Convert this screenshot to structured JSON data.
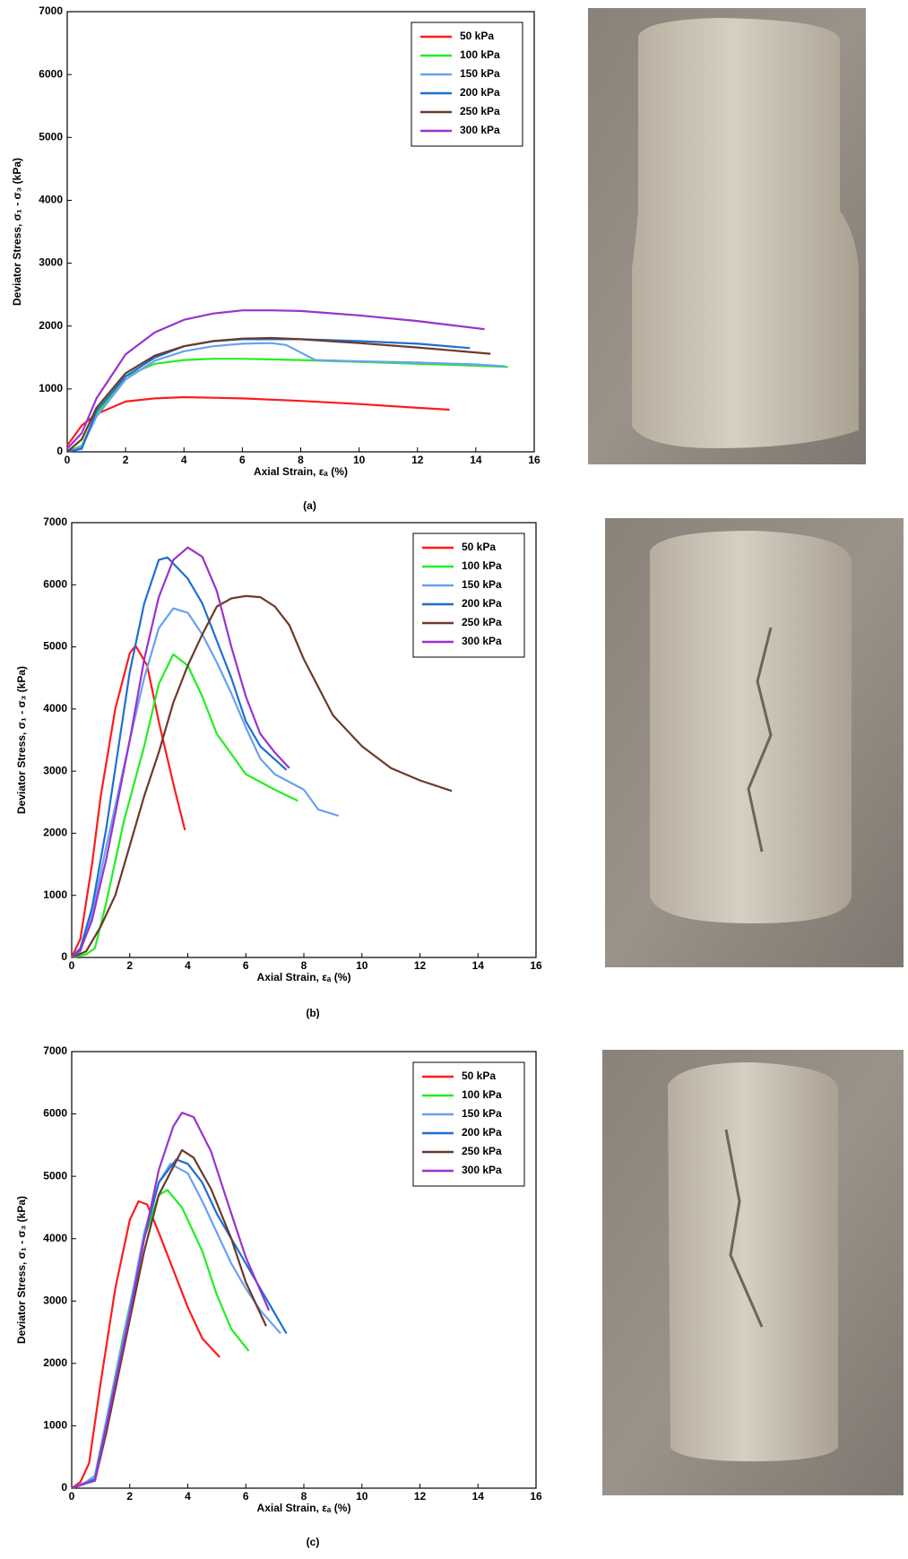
{
  "chart_data": [
    {
      "type": "line",
      "caption": "(a)",
      "xlabel": "Axial Strain, εₐ (%)",
      "ylabel": "Deviator Stress, σ₁ - σ₃ (kPa)",
      "xlim": [
        0,
        16
      ],
      "xticks": [
        0,
        2,
        4,
        6,
        8,
        10,
        12,
        14,
        16
      ],
      "ylim": [
        0,
        7000
      ],
      "yticks": [
        0,
        1000,
        2000,
        3000,
        4000,
        5000,
        6000,
        7000
      ],
      "legend": "top-right",
      "series": [
        {
          "name": "50 kPa",
          "color": "#ff1a1a",
          "x": [
            0,
            0.5,
            1,
            2,
            3,
            4,
            5,
            6,
            8,
            10,
            12,
            13.1
          ],
          "values": [
            100,
            420,
            600,
            800,
            850,
            870,
            860,
            850,
            810,
            760,
            700,
            670
          ]
        },
        {
          "name": "100 kPa",
          "color": "#22ee22",
          "x": [
            0,
            0.5,
            1,
            2,
            3,
            4,
            5,
            6,
            8,
            10,
            12,
            14,
            15.1
          ],
          "values": [
            0,
            100,
            600,
            1200,
            1400,
            1460,
            1480,
            1480,
            1460,
            1430,
            1400,
            1370,
            1350
          ]
        },
        {
          "name": "150 kPa",
          "color": "#6aa0f0",
          "x": [
            0,
            0.5,
            1,
            2,
            3,
            4,
            5,
            6,
            7,
            7.5,
            8.5,
            10,
            12,
            14,
            15
          ],
          "values": [
            0,
            80,
            560,
            1150,
            1450,
            1600,
            1680,
            1720,
            1730,
            1700,
            1460,
            1440,
            1420,
            1390,
            1360
          ]
        },
        {
          "name": "200 kPa",
          "color": "#1f6fcf",
          "x": [
            0,
            0.5,
            1,
            2,
            3,
            4,
            5,
            6,
            8,
            10,
            12,
            13.8
          ],
          "values": [
            0,
            50,
            650,
            1200,
            1500,
            1680,
            1760,
            1790,
            1790,
            1760,
            1720,
            1650
          ]
        },
        {
          "name": "250 kPa",
          "color": "#6b3a2a",
          "x": [
            0,
            0.5,
            1,
            2,
            3,
            4,
            5,
            6,
            7,
            8,
            10,
            12,
            14.5
          ],
          "values": [
            0,
            200,
            700,
            1250,
            1530,
            1680,
            1760,
            1800,
            1810,
            1790,
            1730,
            1660,
            1560
          ]
        },
        {
          "name": "300 kPa",
          "color": "#9933cc",
          "x": [
            0,
            0.5,
            1,
            2,
            3,
            4,
            5,
            6,
            7,
            8,
            10,
            12,
            14.3
          ],
          "values": [
            50,
            300,
            850,
            1550,
            1900,
            2100,
            2200,
            2250,
            2250,
            2240,
            2170,
            2080,
            1950
          ]
        }
      ]
    },
    {
      "type": "line",
      "caption": "(b)",
      "xlabel": "Axial Strain, εₐ (%)",
      "ylabel": "Deviator Stress, σ₁ - σ₃ (kPa)",
      "xlim": [
        0,
        16
      ],
      "xticks": [
        0,
        2,
        4,
        6,
        8,
        10,
        12,
        14,
        16
      ],
      "ylim": [
        0,
        7000
      ],
      "yticks": [
        0,
        1000,
        2000,
        3000,
        4000,
        5000,
        6000,
        7000
      ],
      "legend": "top-right",
      "series": [
        {
          "name": "50 kPa",
          "color": "#ff1a1a",
          "x": [
            0,
            0.3,
            0.7,
            1,
            1.5,
            2,
            2.2,
            2.6,
            3,
            3.5,
            3.9
          ],
          "values": [
            0,
            300,
            1500,
            2600,
            4000,
            4900,
            5020,
            4700,
            3800,
            2800,
            2050
          ]
        },
        {
          "name": "100 kPa",
          "color": "#22ee22",
          "x": [
            0,
            0.5,
            0.8,
            1.2,
            1.8,
            2.5,
            3,
            3.5,
            4,
            4.5,
            5,
            6,
            7,
            7.8
          ],
          "values": [
            0,
            50,
            150,
            900,
            2200,
            3400,
            4400,
            4880,
            4700,
            4200,
            3600,
            2950,
            2700,
            2520
          ]
        },
        {
          "name": "150 kPa",
          "color": "#6aa0f0",
          "x": [
            0,
            0.3,
            0.7,
            1.2,
            2,
            2.5,
            3,
            3.5,
            4,
            4.5,
            5,
            5.5,
            6,
            6.5,
            7,
            8,
            8.5,
            9.2
          ],
          "values": [
            0,
            100,
            700,
            1800,
            3500,
            4500,
            5300,
            5620,
            5550,
            5200,
            4750,
            4250,
            3700,
            3200,
            2950,
            2700,
            2380,
            2280
          ]
        },
        {
          "name": "200 kPa",
          "color": "#1f6fcf",
          "x": [
            0,
            0.3,
            0.7,
            1.2,
            2,
            2.5,
            3,
            3.3,
            4,
            4.5,
            5,
            5.5,
            6,
            6.5,
            7.4
          ],
          "values": [
            0,
            150,
            800,
            2100,
            4600,
            5700,
            6400,
            6440,
            6100,
            5700,
            5100,
            4500,
            3800,
            3400,
            3020
          ]
        },
        {
          "name": "250 kPa",
          "color": "#6b3a2a",
          "x": [
            0,
            0.5,
            1,
            1.5,
            2,
            2.5,
            3,
            3.5,
            4,
            4.5,
            5,
            5.5,
            6,
            6.5,
            7,
            7.5,
            8,
            9,
            10,
            11,
            11.5,
            12,
            13.1
          ],
          "values": [
            0,
            100,
            500,
            1000,
            1800,
            2600,
            3300,
            4100,
            4700,
            5200,
            5650,
            5780,
            5820,
            5800,
            5650,
            5350,
            4800,
            3900,
            3400,
            3050,
            2950,
            2850,
            2680
          ]
        },
        {
          "name": "300 kPa",
          "color": "#9933cc",
          "x": [
            0,
            0.3,
            0.7,
            1.2,
            2,
            2.5,
            3,
            3.5,
            4,
            4.5,
            5,
            5.5,
            6,
            6.5,
            7,
            7.5
          ],
          "values": [
            0,
            120,
            600,
            1600,
            3500,
            4800,
            5800,
            6400,
            6600,
            6450,
            5900,
            5000,
            4200,
            3600,
            3300,
            3050
          ]
        }
      ]
    },
    {
      "type": "line",
      "caption": "(c)",
      "xlabel": "Axial Strain, εₐ (%)",
      "ylabel": "Deviator Stress, σ₁ - σ₃ (kPa)",
      "xlim": [
        0,
        16
      ],
      "xticks": [
        0,
        2,
        4,
        6,
        8,
        10,
        12,
        14,
        16
      ],
      "ylim": [
        0,
        7000
      ],
      "yticks": [
        0,
        1000,
        2000,
        3000,
        4000,
        5000,
        6000,
        7000
      ],
      "legend": "top-right",
      "series": [
        {
          "name": "50 kPa",
          "color": "#ff1a1a",
          "x": [
            0,
            0.3,
            0.6,
            1,
            1.5,
            2,
            2.3,
            2.6,
            3,
            3.5,
            4,
            4.5,
            5.1
          ],
          "values": [
            0,
            100,
            400,
            1700,
            3200,
            4300,
            4600,
            4550,
            4100,
            3500,
            2900,
            2400,
            2100
          ]
        },
        {
          "name": "100 kPa",
          "color": "#22ee22",
          "x": [
            0,
            0.5,
            0.8,
            1.2,
            1.8,
            2.5,
            3,
            3.3,
            3.8,
            4.5,
            5,
            5.5,
            6.1
          ],
          "values": [
            0,
            100,
            200,
            1100,
            2500,
            4000,
            4700,
            4780,
            4500,
            3800,
            3100,
            2550,
            2200
          ]
        },
        {
          "name": "150 kPa",
          "color": "#6aa0f0",
          "x": [
            0,
            0.5,
            0.8,
            1.2,
            2,
            2.5,
            3,
            3.4,
            4,
            4.5,
            5,
            5.5,
            6,
            6.5,
            7.2
          ],
          "values": [
            0,
            100,
            200,
            1100,
            2900,
            4100,
            4900,
            5200,
            5050,
            4600,
            4100,
            3600,
            3200,
            2850,
            2480
          ]
        },
        {
          "name": "200 kPa",
          "color": "#1f6fcf",
          "x": [
            0,
            0.5,
            0.8,
            1.2,
            2,
            2.5,
            3,
            3.6,
            4,
            4.5,
            5,
            6,
            7,
            7.4
          ],
          "values": [
            0,
            80,
            150,
            1000,
            2800,
            4000,
            4900,
            5270,
            5200,
            4900,
            4400,
            3600,
            2800,
            2480
          ]
        },
        {
          "name": "250 kPa",
          "color": "#6b3a2a",
          "x": [
            0,
            0.5,
            0.8,
            1.2,
            2,
            2.5,
            3,
            3.8,
            4.2,
            4.8,
            5.5,
            6,
            6.7
          ],
          "values": [
            0,
            80,
            120,
            900,
            2700,
            3800,
            4700,
            5420,
            5300,
            4800,
            4000,
            3300,
            2600
          ]
        },
        {
          "name": "300 kPa",
          "color": "#9933cc",
          "x": [
            0,
            0.5,
            0.8,
            1.2,
            2,
            2.5,
            3,
            3.5,
            3.8,
            4.2,
            4.8,
            5.5,
            6,
            6.8
          ],
          "values": [
            0,
            80,
            120,
            1000,
            2800,
            4000,
            5100,
            5800,
            6020,
            5950,
            5400,
            4400,
            3700,
            2850
          ]
        }
      ]
    }
  ]
}
